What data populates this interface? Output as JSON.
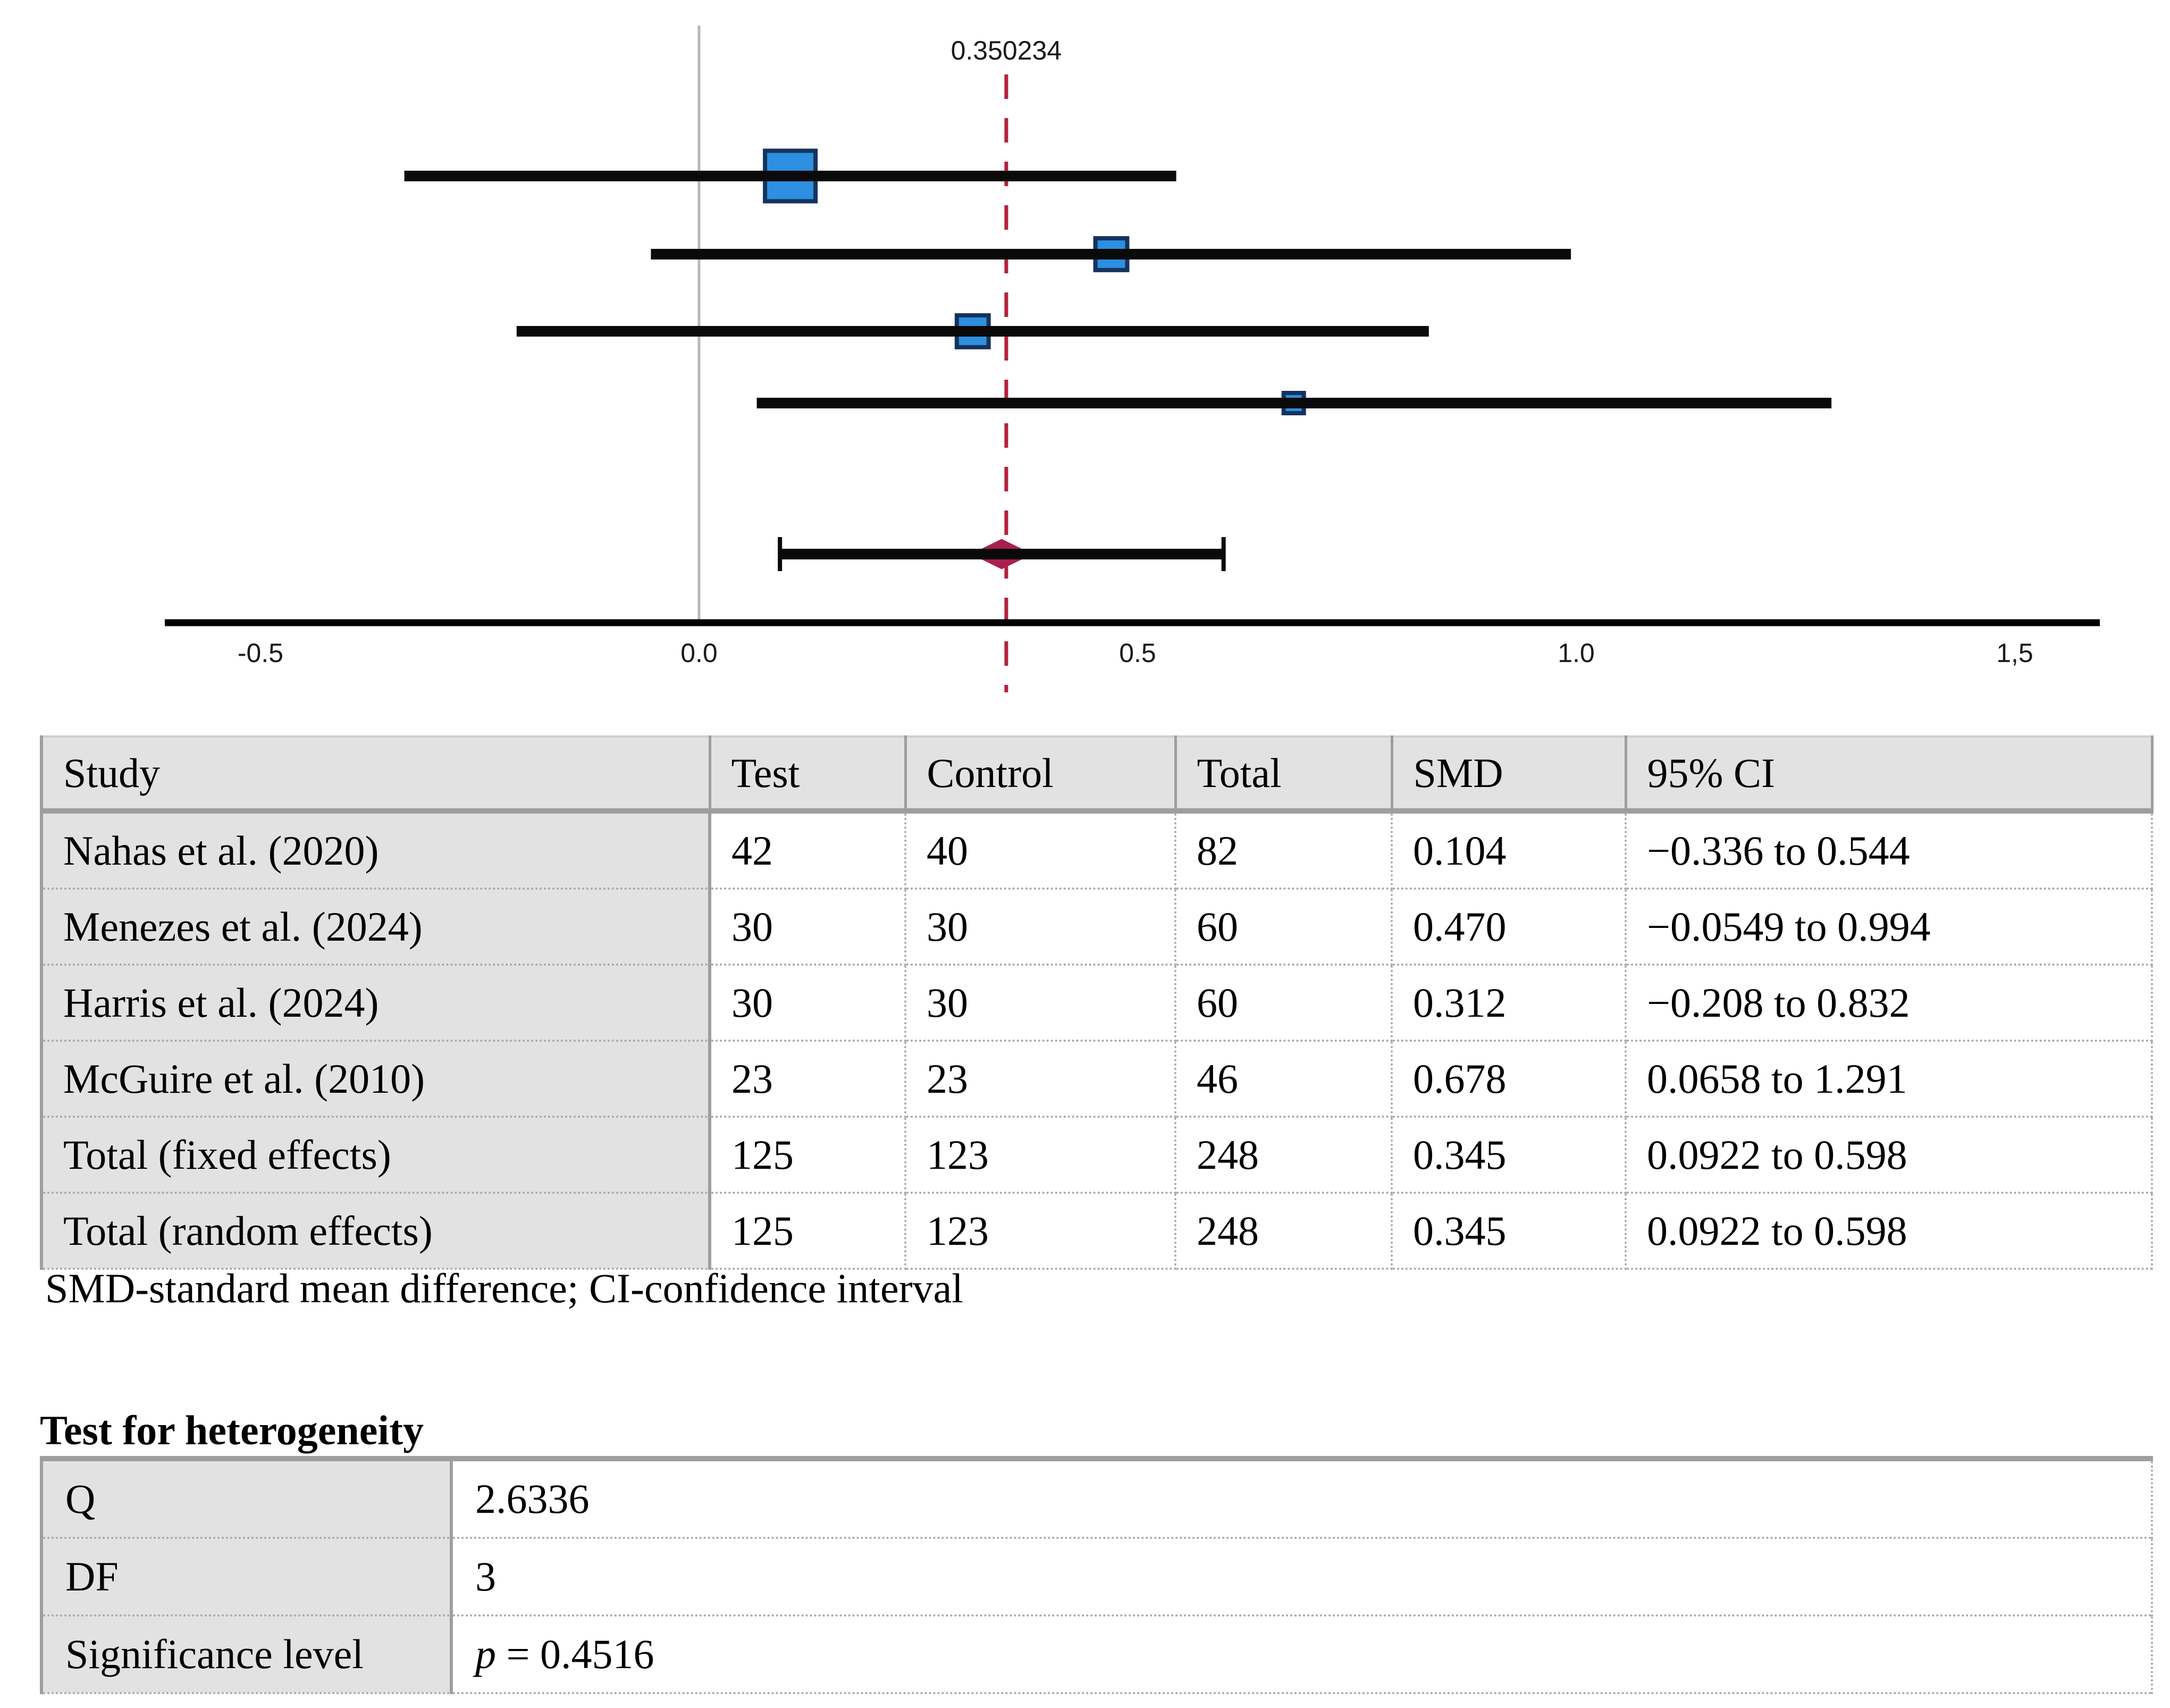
{
  "figure": {
    "footnote": "SMD-standard mean difference; CI-confidence interval",
    "heterogeneity_heading": "Test for heterogeneity"
  },
  "chart_data": {
    "type": "forest",
    "xlabel": "",
    "ylabel": "",
    "xlim": [
      -0.61,
      1.6
    ],
    "grid": false,
    "x_ticks": [
      {
        "v": -0.5,
        "label": "-0.5"
      },
      {
        "v": 0.0,
        "label": "0.0"
      },
      {
        "v": 0.5,
        "label": "0.5"
      },
      {
        "v": 1.0,
        "label": "1.0"
      },
      {
        "v": 1.5,
        "label": "1,5"
      }
    ],
    "zero_line": {
      "value": 0.0,
      "color": "#b8b8b8"
    },
    "reference_line": {
      "value": 0.350234,
      "label": "0.350234",
      "color": "#b5213c"
    },
    "studies": [
      {
        "name": "Nahas et al. (2020)",
        "smd": 0.104,
        "ci_low": -0.336,
        "ci_high": 0.544,
        "marker_rel": 1.0
      },
      {
        "name": "Menezes et al. (2024)",
        "smd": 0.47,
        "ci_low": -0.0549,
        "ci_high": 0.994,
        "marker_rel": 0.63
      },
      {
        "name": "Harris et al. (2024)",
        "smd": 0.312,
        "ci_low": -0.208,
        "ci_high": 0.832,
        "marker_rel": 0.63
      },
      {
        "name": "McGuire et al. (2010)",
        "smd": 0.678,
        "ci_low": 0.0658,
        "ci_high": 1.291,
        "marker_rel": 0.4
      }
    ],
    "total": {
      "name": "Total",
      "smd": 0.345,
      "ci_low": 0.0922,
      "ci_high": 0.598
    },
    "colors": {
      "square_fill": "#2d8fe0",
      "square_stroke": "#16335d",
      "diamond": "#a8204e",
      "ci_line": "#0a0a0a",
      "axis_line": "#000000"
    }
  },
  "results_table": {
    "columns": [
      "Study",
      "Test",
      "Control",
      "Total",
      "SMD",
      "95% CI"
    ],
    "rows": [
      [
        "Nahas et al. (2020)",
        "42",
        "40",
        "82",
        "0.104",
        "−0.336 to 0.544"
      ],
      [
        "Menezes et al. (2024)",
        "30",
        "30",
        "60",
        "0.470",
        "−0.0549 to 0.994"
      ],
      [
        "Harris et al. (2024)",
        "30",
        "30",
        "60",
        "0.312",
        "−0.208 to 0.832"
      ],
      [
        "McGuire et al. (2010)",
        "23",
        "23",
        "46",
        "0.678",
        "0.0658 to 1.291"
      ],
      [
        "Total (fixed effects)",
        "125",
        "123",
        "248",
        "0.345",
        "0.0922 to 0.598"
      ],
      [
        "Total (random effects)",
        "125",
        "123",
        "248",
        "0.345",
        "0.0922 to 0.598"
      ]
    ]
  },
  "heterogeneity_table": {
    "rows": [
      {
        "label": "Q",
        "value": "2.6336",
        "italic_first_token": false
      },
      {
        "label": "DF",
        "value": "3",
        "italic_first_token": false
      },
      {
        "label": "Significance level",
        "value": "p = 0.4516",
        "italic_first_token": true
      }
    ]
  }
}
